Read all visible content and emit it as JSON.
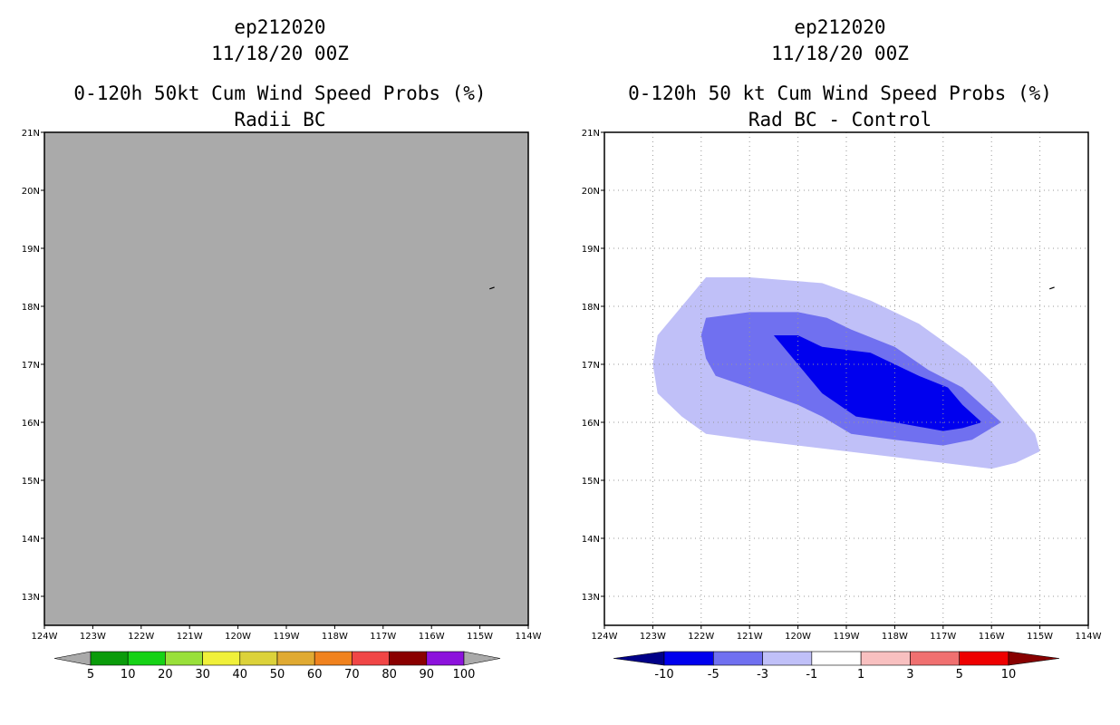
{
  "left_panel": {
    "storm_id": "ep212020",
    "datetime": "11/18/20 00Z",
    "title": "0-120h 50kt Cum Wind Speed Probs (%)",
    "subtitle": "Radii BC"
  },
  "right_panel": {
    "storm_id": "ep212020",
    "datetime": "11/18/20 00Z",
    "title": "0-120h 50 kt Cum Wind Speed Probs (%)",
    "subtitle": "Rad BC - Control"
  },
  "colors": {
    "no_data_fill": "#aaaaaa",
    "prob_scale": [
      "#aaaaaa",
      "#0a9b0a",
      "#16d216",
      "#99e03a",
      "#f0f03a",
      "#dcd23a",
      "#e0aa32",
      "#f0821e",
      "#f04646",
      "#8a0000",
      "#8c12dc",
      "#aaaaaa"
    ],
    "diff_scale": [
      "#000088",
      "#0000ee",
      "#7070f0",
      "#c0c0f8",
      "#ffffff",
      "#f8c0c0",
      "#f07070",
      "#ee0000",
      "#880000"
    ]
  },
  "chart_data": [
    {
      "type": "heatmap",
      "title": "0-120h 50kt Cum Wind Speed Probs (%)",
      "subtitle": "Radii BC",
      "x_ticks": [
        "124W",
        "123W",
        "122W",
        "121W",
        "120W",
        "119W",
        "118W",
        "117W",
        "116W",
        "115W",
        "114W"
      ],
      "y_ticks": [
        "13N",
        "14N",
        "15N",
        "16N",
        "17N",
        "18N",
        "19N",
        "20N",
        "21N"
      ],
      "xlim": [
        -124,
        -114
      ],
      "ylim": [
        12.5,
        21
      ],
      "grid": false,
      "field": "uniform below 5% (no probability contours)",
      "colorbar": {
        "labels": [
          "5",
          "10",
          "20",
          "30",
          "40",
          "50",
          "60",
          "70",
          "80",
          "90",
          "100"
        ],
        "position": "bottom"
      }
    },
    {
      "type": "heatmap",
      "title": "0-120h 50 kt Cum Wind Speed Probs (%)",
      "subtitle": "Rad BC - Control",
      "x_ticks": [
        "124W",
        "123W",
        "122W",
        "121W",
        "120W",
        "119W",
        "118W",
        "117W",
        "116W",
        "115W",
        "114W"
      ],
      "y_ticks": [
        "13N",
        "14N",
        "15N",
        "16N",
        "17N",
        "18N",
        "19N",
        "20N",
        "21N"
      ],
      "xlim": [
        -124,
        -114
      ],
      "ylim": [
        12.5,
        21
      ],
      "grid": true,
      "contours": [
        {
          "level": "-1 to -3",
          "polygon": [
            [
              -122.9,
              17.5
            ],
            [
              -122.5,
              17.9
            ],
            [
              -121.9,
              18.5
            ],
            [
              -121.0,
              18.5
            ],
            [
              -119.5,
              18.4
            ],
            [
              -118.5,
              18.1
            ],
            [
              -117.5,
              17.7
            ],
            [
              -116.5,
              17.1
            ],
            [
              -116.0,
              16.7
            ],
            [
              -115.5,
              16.2
            ],
            [
              -115.1,
              15.8
            ],
            [
              -115.0,
              15.5
            ],
            [
              -115.5,
              15.3
            ],
            [
              -116.0,
              15.2
            ],
            [
              -117.0,
              15.3
            ],
            [
              -118.0,
              15.4
            ],
            [
              -119.0,
              15.5
            ],
            [
              -120.0,
              15.6
            ],
            [
              -121.0,
              15.7
            ],
            [
              -121.9,
              15.8
            ],
            [
              -122.4,
              16.1
            ],
            [
              -122.9,
              16.5
            ],
            [
              -123.0,
              17.0
            ]
          ]
        },
        {
          "level": "-3 to -5",
          "polygon": [
            [
              -122.0,
              17.5
            ],
            [
              -121.9,
              17.8
            ],
            [
              -121.0,
              17.9
            ],
            [
              -120.0,
              17.9
            ],
            [
              -119.4,
              17.8
            ],
            [
              -118.9,
              17.6
            ],
            [
              -118.0,
              17.3
            ],
            [
              -117.3,
              16.9
            ],
            [
              -116.6,
              16.6
            ],
            [
              -116.2,
              16.3
            ],
            [
              -115.8,
              16.0
            ],
            [
              -116.0,
              15.9
            ],
            [
              -116.4,
              15.7
            ],
            [
              -117.0,
              15.6
            ],
            [
              -118.0,
              15.7
            ],
            [
              -118.9,
              15.8
            ],
            [
              -119.5,
              16.1
            ],
            [
              -120.0,
              16.3
            ],
            [
              -121.0,
              16.6
            ],
            [
              -121.7,
              16.8
            ],
            [
              -121.9,
              17.1
            ]
          ]
        },
        {
          "level": "-5 to -10",
          "polygon": [
            [
              -120.5,
              17.5
            ],
            [
              -120.0,
              17.5
            ],
            [
              -119.5,
              17.3
            ],
            [
              -118.5,
              17.2
            ],
            [
              -118.0,
              17.0
            ],
            [
              -117.5,
              16.8
            ],
            [
              -116.9,
              16.6
            ],
            [
              -116.6,
              16.3
            ],
            [
              -116.2,
              16.0
            ],
            [
              -116.6,
              15.9
            ],
            [
              -117.0,
              15.85
            ],
            [
              -118.0,
              16.0
            ],
            [
              -118.8,
              16.1
            ],
            [
              -119.5,
              16.5
            ],
            [
              -119.9,
              16.9
            ]
          ]
        }
      ],
      "colorbar": {
        "labels": [
          "-10",
          "-5",
          "-3",
          "-1",
          "1",
          "3",
          "5",
          "10"
        ],
        "position": "bottom"
      }
    }
  ]
}
